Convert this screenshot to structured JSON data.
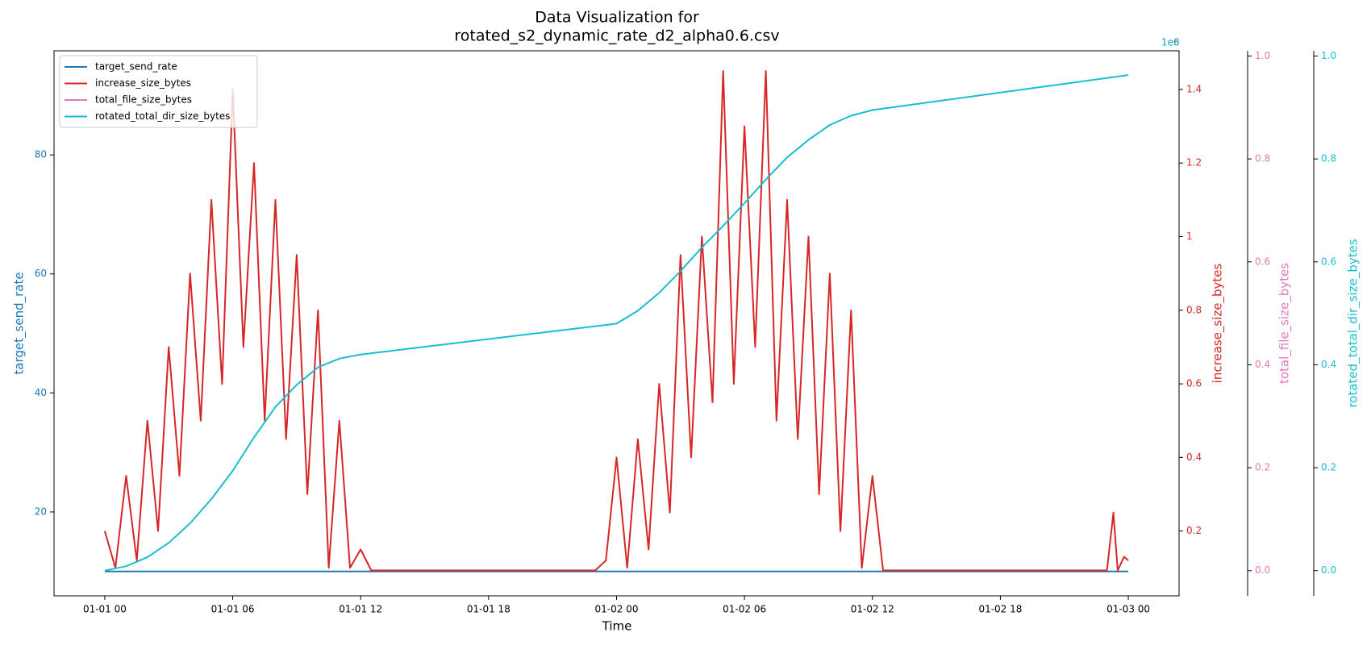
{
  "chart_data": {
    "type": "line",
    "title": [
      "Data Visualization for",
      "rotated_s2_dynamic_rate_d2_alpha0.6.csv"
    ],
    "xlabel": "Time",
    "xlim": [
      -2.38,
      50.38
    ],
    "xticks": [
      {
        "value": 0,
        "label": "01-01 00"
      },
      {
        "value": 6,
        "label": "01-01 06"
      },
      {
        "value": 12,
        "label": "01-01 12"
      },
      {
        "value": 18,
        "label": "01-01 18"
      },
      {
        "value": 24,
        "label": "01-02 00"
      },
      {
        "value": 30,
        "label": "01-02 06"
      },
      {
        "value": 36,
        "label": "01-02 12"
      },
      {
        "value": 42,
        "label": "01-02 18"
      },
      {
        "value": 48,
        "label": "01-03 00"
      }
    ],
    "axes": {
      "y": {
        "label": "target_send_rate",
        "color": "#1f77b4",
        "lim": [
          5.9,
          97.5
        ],
        "ticks": [
          20,
          40,
          60,
          80
        ]
      },
      "y2": {
        "label": "increase_size_bytes",
        "color": "#d62728",
        "lim": [
          0.024,
          1.505
        ],
        "ticks": [
          0.2,
          0.4,
          0.6,
          0.8,
          1.0,
          1.2,
          1.4
        ],
        "offset_text": "1e6"
      },
      "y3": {
        "label": "total_file_size_bytes",
        "color": "#e377c2",
        "lim": [
          -0.049,
          1.0102
        ],
        "ticks": [
          {
            "value": 0,
            "label": "0.0"
          },
          0.2,
          0.4,
          0.6,
          0.8,
          {
            "value": 1,
            "label": "1.0"
          }
        ]
      },
      "y4": {
        "label": "rotated_total_dir_size_bytes",
        "color": "#17becf",
        "lim": [
          -0.049,
          1.0102
        ],
        "ticks": [
          {
            "value": 0,
            "label": "0.0"
          },
          0.2,
          0.4,
          0.6,
          0.8,
          {
            "value": 1,
            "label": "1.0"
          }
        ],
        "offset_text": "1e8"
      }
    },
    "legend": "upper left",
    "series": [
      {
        "name": "target_send_rate",
        "color": "#1f77b4",
        "axis": "y",
        "x": [
          0,
          48
        ],
        "values": [
          10,
          10
        ]
      },
      {
        "name": "increase_size_bytes",
        "color": "#d62728",
        "axis": "y2",
        "x": [
          0,
          0.5,
          1,
          1.5,
          2,
          2.5,
          3,
          3.5,
          4,
          4.5,
          5,
          5.5,
          6,
          6.5,
          7,
          7.5,
          8,
          8.5,
          9,
          9.5,
          10,
          10.5,
          11,
          11.5,
          12,
          12.5,
          13,
          23,
          23.5,
          24,
          24.5,
          25,
          25.5,
          26,
          26.5,
          27,
          27.5,
          28,
          28.5,
          29,
          29.5,
          30,
          30.5,
          31,
          31.5,
          32,
          32.5,
          33,
          33.5,
          34,
          34.5,
          35,
          35.5,
          36,
          36.5,
          47,
          47.3,
          47.5,
          47.8,
          48
        ],
        "values": [
          0.2,
          0.1,
          0.35,
          0.12,
          0.5,
          0.2,
          0.7,
          0.35,
          0.9,
          0.5,
          1.1,
          0.6,
          1.4,
          0.7,
          1.2,
          0.5,
          1.1,
          0.45,
          0.95,
          0.3,
          0.8,
          0.1,
          0.5,
          0.1,
          0.15,
          0.093,
          0.093,
          0.093,
          0.12,
          0.4,
          0.1,
          0.45,
          0.15,
          0.6,
          0.25,
          0.95,
          0.4,
          1.0,
          0.55,
          1.45,
          0.6,
          1.3,
          0.7,
          1.45,
          0.5,
          1.1,
          0.45,
          1.0,
          0.3,
          0.9,
          0.2,
          0.8,
          0.1,
          0.35,
          0.093,
          0.093,
          0.25,
          0.093,
          0.13,
          0.12
        ]
      },
      {
        "name": "total_file_size_bytes",
        "color": "#e377c2",
        "axis": "y3",
        "x": [],
        "values": []
      },
      {
        "name": "rotated_total_dir_size_bytes",
        "color": "#17becf",
        "axis": "y4",
        "x": [
          0,
          1,
          2,
          3,
          4,
          5,
          6,
          7,
          8,
          9,
          10,
          11,
          12,
          24,
          25,
          26,
          27,
          28,
          29,
          30,
          31,
          32,
          33,
          34,
          35,
          36,
          48
        ],
        "values": [
          0,
          0.0085,
          0.026,
          0.054,
          0.092,
          0.139,
          0.194,
          0.259,
          0.318,
          0.361,
          0.395,
          0.412,
          0.42,
          0.48,
          0.505,
          0.54,
          0.582,
          0.628,
          0.67,
          0.714,
          0.76,
          0.803,
          0.837,
          0.866,
          0.884,
          0.895,
          0.963
        ]
      }
    ]
  }
}
